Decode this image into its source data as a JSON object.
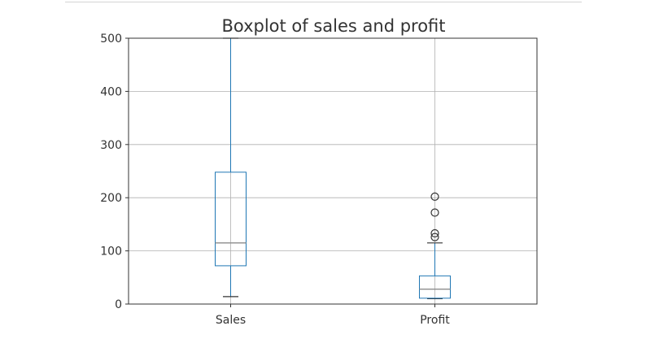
{
  "chart_data": {
    "type": "boxplot",
    "title": "Boxplot of sales and profit",
    "xlabel": "",
    "ylabel": "",
    "ylim": [
      0,
      500
    ],
    "yticks": [
      0,
      100,
      200,
      300,
      400,
      500
    ],
    "grid": true,
    "categories": [
      "Sales",
      "Profit"
    ],
    "boxes": [
      {
        "name": "Sales",
        "whisker_low": 14,
        "q1": 72,
        "median": 115,
        "q3": 248,
        "whisker_high": 500,
        "outliers": []
      },
      {
        "name": "Profit",
        "whisker_low": 10,
        "q1": 11,
        "median": 28,
        "q3": 53,
        "whisker_high": 115,
        "outliers": [
          126,
          133,
          172,
          202
        ]
      }
    ],
    "colors": {
      "box": "#1f77b4",
      "median": "#8c8c8c",
      "grid": "#b0b0b0",
      "axes": "#333333",
      "text": "#333333"
    }
  }
}
